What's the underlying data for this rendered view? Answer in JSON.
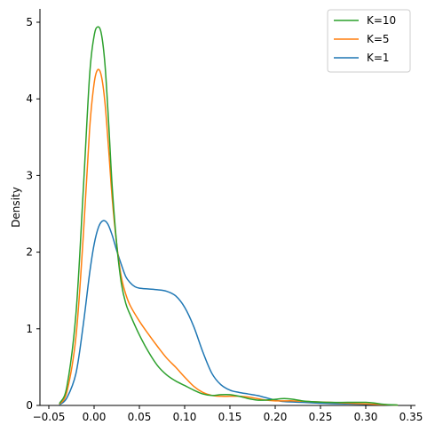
{
  "chart_data": {
    "type": "line",
    "title": "",
    "xlabel": "",
    "ylabel": "Density",
    "xlim": [
      -0.05,
      0.35
    ],
    "ylim": [
      0,
      5.2
    ],
    "xticks": [
      -0.05,
      0.0,
      0.05,
      0.1,
      0.15,
      0.2,
      0.25,
      0.3,
      0.35
    ],
    "xtick_labels": [
      "−0.05",
      "0.00",
      "0.05",
      "0.10",
      "0.15",
      "0.20",
      "0.25",
      "0.30",
      "0.35"
    ],
    "yticks": [
      0,
      1,
      2,
      3,
      4,
      5
    ],
    "ytick_labels": [
      "0",
      "1",
      "2",
      "3",
      "4",
      "5"
    ],
    "grid": false,
    "legend_position": "top-right",
    "series": [
      {
        "name": "K=10",
        "color": "#2ca02c",
        "points": [
          [
            -0.038,
            0.03
          ],
          [
            -0.03,
            0.25
          ],
          [
            -0.02,
            1.2
          ],
          [
            -0.012,
            2.8
          ],
          [
            -0.005,
            4.3
          ],
          [
            0.0,
            4.82
          ],
          [
            0.004,
            4.94
          ],
          [
            0.008,
            4.85
          ],
          [
            0.012,
            4.45
          ],
          [
            0.016,
            3.7
          ],
          [
            0.02,
            2.85
          ],
          [
            0.025,
            2.1
          ],
          [
            0.03,
            1.6
          ],
          [
            0.035,
            1.33
          ],
          [
            0.04,
            1.18
          ],
          [
            0.05,
            0.92
          ],
          [
            0.06,
            0.7
          ],
          [
            0.07,
            0.52
          ],
          [
            0.08,
            0.4
          ],
          [
            0.09,
            0.32
          ],
          [
            0.1,
            0.26
          ],
          [
            0.11,
            0.2
          ],
          [
            0.12,
            0.15
          ],
          [
            0.13,
            0.13
          ],
          [
            0.14,
            0.14
          ],
          [
            0.15,
            0.14
          ],
          [
            0.16,
            0.12
          ],
          [
            0.17,
            0.09
          ],
          [
            0.18,
            0.07
          ],
          [
            0.19,
            0.07
          ],
          [
            0.2,
            0.08
          ],
          [
            0.21,
            0.09
          ],
          [
            0.22,
            0.08
          ],
          [
            0.23,
            0.06
          ],
          [
            0.24,
            0.05
          ],
          [
            0.26,
            0.04
          ],
          [
            0.28,
            0.04
          ],
          [
            0.3,
            0.04
          ],
          [
            0.31,
            0.03
          ],
          [
            0.32,
            0.015
          ],
          [
            0.335,
            0.005
          ]
        ]
      },
      {
        "name": "K=5",
        "color": "#ff7f0e",
        "points": [
          [
            -0.038,
            0.02
          ],
          [
            -0.03,
            0.18
          ],
          [
            -0.02,
            0.9
          ],
          [
            -0.012,
            2.2
          ],
          [
            -0.005,
            3.6
          ],
          [
            0.0,
            4.2
          ],
          [
            0.004,
            4.38
          ],
          [
            0.008,
            4.3
          ],
          [
            0.012,
            3.95
          ],
          [
            0.016,
            3.35
          ],
          [
            0.02,
            2.7
          ],
          [
            0.025,
            2.1
          ],
          [
            0.03,
            1.68
          ],
          [
            0.035,
            1.45
          ],
          [
            0.04,
            1.3
          ],
          [
            0.05,
            1.1
          ],
          [
            0.06,
            0.93
          ],
          [
            0.07,
            0.77
          ],
          [
            0.08,
            0.62
          ],
          [
            0.09,
            0.5
          ],
          [
            0.1,
            0.37
          ],
          [
            0.11,
            0.25
          ],
          [
            0.12,
            0.17
          ],
          [
            0.13,
            0.13
          ],
          [
            0.14,
            0.12
          ],
          [
            0.15,
            0.12
          ],
          [
            0.16,
            0.12
          ],
          [
            0.17,
            0.11
          ],
          [
            0.18,
            0.09
          ],
          [
            0.19,
            0.07
          ],
          [
            0.2,
            0.06
          ],
          [
            0.21,
            0.06
          ],
          [
            0.22,
            0.06
          ],
          [
            0.23,
            0.055
          ],
          [
            0.24,
            0.05
          ],
          [
            0.26,
            0.04
          ],
          [
            0.28,
            0.03
          ],
          [
            0.3,
            0.02
          ],
          [
            0.32,
            0.01
          ],
          [
            0.335,
            0.004
          ]
        ]
      },
      {
        "name": "K=1",
        "color": "#1f77b4",
        "points": [
          [
            -0.038,
            0.01
          ],
          [
            -0.03,
            0.1
          ],
          [
            -0.02,
            0.42
          ],
          [
            -0.012,
            1.05
          ],
          [
            -0.005,
            1.72
          ],
          [
            0.0,
            2.1
          ],
          [
            0.005,
            2.33
          ],
          [
            0.01,
            2.41
          ],
          [
            0.015,
            2.37
          ],
          [
            0.02,
            2.22
          ],
          [
            0.025,
            2.02
          ],
          [
            0.03,
            1.84
          ],
          [
            0.035,
            1.68
          ],
          [
            0.04,
            1.6
          ],
          [
            0.045,
            1.55
          ],
          [
            0.05,
            1.53
          ],
          [
            0.06,
            1.52
          ],
          [
            0.07,
            1.51
          ],
          [
            0.08,
            1.49
          ],
          [
            0.09,
            1.43
          ],
          [
            0.1,
            1.28
          ],
          [
            0.11,
            1.03
          ],
          [
            0.12,
            0.7
          ],
          [
            0.13,
            0.42
          ],
          [
            0.14,
            0.27
          ],
          [
            0.15,
            0.2
          ],
          [
            0.16,
            0.17
          ],
          [
            0.17,
            0.15
          ],
          [
            0.18,
            0.13
          ],
          [
            0.19,
            0.1
          ],
          [
            0.2,
            0.07
          ],
          [
            0.21,
            0.05
          ],
          [
            0.22,
            0.045
          ],
          [
            0.23,
            0.04
          ],
          [
            0.24,
            0.035
          ],
          [
            0.26,
            0.025
          ],
          [
            0.28,
            0.02
          ],
          [
            0.3,
            0.015
          ],
          [
            0.32,
            0.008
          ],
          [
            0.335,
            0.003
          ]
        ]
      }
    ]
  }
}
